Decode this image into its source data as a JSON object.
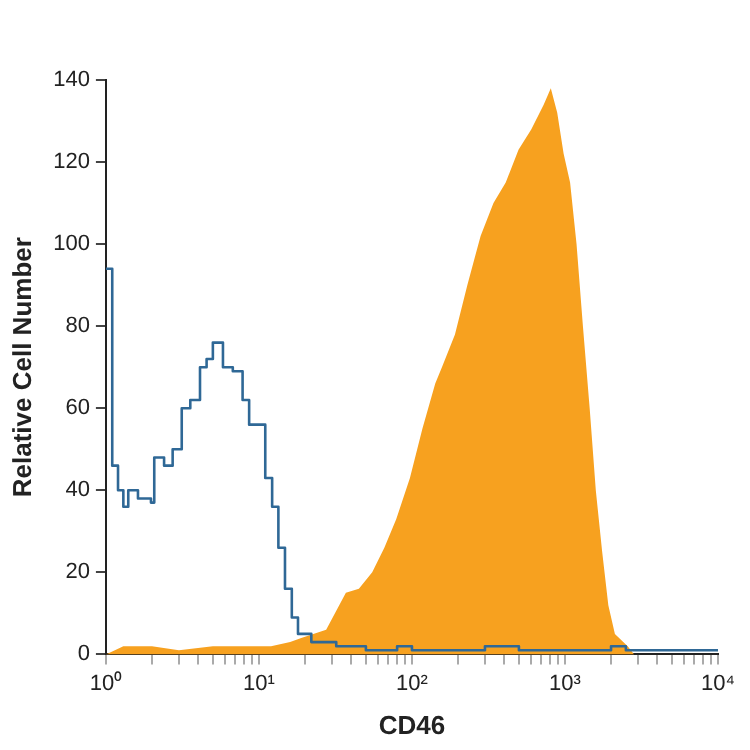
{
  "chart_data": {
    "type": "area",
    "xlabel": "CD46",
    "ylabel": "Relative Cell Number",
    "log": "x",
    "xlim": [
      1,
      10000
    ],
    "ylim": [
      0,
      140
    ],
    "xticks": [
      {
        "value": 1,
        "label": "10⁰"
      },
      {
        "value": 2,
        "label": null
      },
      {
        "value": 3,
        "label": null
      },
      {
        "value": 4,
        "label": null
      },
      {
        "value": 5,
        "label": null
      },
      {
        "value": 6,
        "label": null
      },
      {
        "value": 7,
        "label": null
      },
      {
        "value": 8,
        "label": null
      },
      {
        "value": 9,
        "label": null
      },
      {
        "value": 10,
        "label": "10¹"
      },
      {
        "value": 20,
        "label": null
      },
      {
        "value": 30,
        "label": null
      },
      {
        "value": 40,
        "label": null
      },
      {
        "value": 50,
        "label": null
      },
      {
        "value": 60,
        "label": null
      },
      {
        "value": 70,
        "label": null
      },
      {
        "value": 80,
        "label": null
      },
      {
        "value": 90,
        "label": null
      },
      {
        "value": 100,
        "label": "10²"
      },
      {
        "value": 200,
        "label": null
      },
      {
        "value": 300,
        "label": null
      },
      {
        "value": 400,
        "label": null
      },
      {
        "value": 500,
        "label": null
      },
      {
        "value": 600,
        "label": null
      },
      {
        "value": 700,
        "label": null
      },
      {
        "value": 800,
        "label": null
      },
      {
        "value": 900,
        "label": null
      },
      {
        "value": 1000,
        "label": "10³"
      },
      {
        "value": 2000,
        "label": null
      },
      {
        "value": 3000,
        "label": null
      },
      {
        "value": 4000,
        "label": null
      },
      {
        "value": 5000,
        "label": null
      },
      {
        "value": 6000,
        "label": null
      },
      {
        "value": 7000,
        "label": null
      },
      {
        "value": 8000,
        "label": null
      },
      {
        "value": 9000,
        "label": null
      },
      {
        "value": 10000,
        "label": "10⁴"
      }
    ],
    "yticks": [
      0,
      20,
      40,
      60,
      80,
      100,
      120,
      140
    ],
    "grid": false,
    "legend": false,
    "series": [
      {
        "type": "step",
        "color": "#2f6896",
        "x": [
          1,
          1.1,
          1.2,
          1.3,
          1.4,
          1.62,
          1.97,
          2.07,
          2.4,
          2.73,
          3.13,
          3.56,
          4.12,
          4.55,
          5,
          5.82,
          6.75,
          7.82,
          8.63,
          10,
          11,
          12.2,
          13.4,
          14.8,
          16.4,
          18,
          22,
          32,
          50,
          80,
          100,
          150,
          250,
          300,
          400,
          500,
          800,
          1000,
          1500,
          2000,
          2500,
          5000,
          10000
        ],
        "values": [
          94,
          46,
          40,
          36,
          40,
          38,
          37,
          48,
          46,
          50,
          60,
          62,
          70,
          72,
          76,
          70,
          69,
          62,
          56,
          56,
          43,
          36,
          26,
          16,
          9,
          5,
          3,
          2,
          1,
          2,
          1,
          1,
          1,
          2,
          2,
          1,
          1,
          1,
          1,
          2,
          1,
          1,
          1
        ]
      },
      {
        "color": "#f7a11f",
        "x": [
          1,
          1.3,
          2,
          3,
          5,
          8,
          12,
          16,
          18.9,
          27.5,
          37,
          45,
          55,
          66,
          79,
          97,
          117,
          142,
          157,
          191,
          230,
          281,
          341,
          410,
          497,
          603,
          727,
          808,
          890,
          980,
          1080,
          1190,
          1310,
          1450,
          1590,
          1750,
          1920,
          2120,
          2570,
          2830,
          10000
        ],
        "values": [
          0,
          2,
          2,
          1,
          2,
          2,
          2,
          3,
          4,
          6,
          15,
          16,
          20,
          26,
          33,
          43,
          55,
          66,
          70,
          78,
          90,
          102,
          110,
          115,
          123,
          128,
          134,
          138,
          132,
          122,
          115,
          100,
          80,
          60,
          40,
          25,
          12,
          5,
          2,
          0,
          0
        ]
      }
    ]
  }
}
